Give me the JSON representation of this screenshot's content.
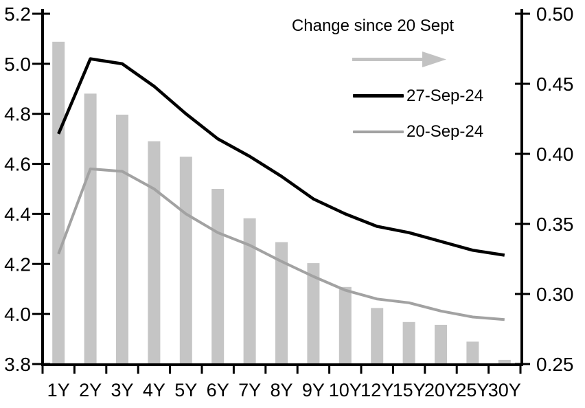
{
  "chart_data": {
    "type": "bar",
    "subtype": "combo-bar-line-dual-axis",
    "categories": [
      "1Y",
      "2Y",
      "3Y",
      "4Y",
      "5Y",
      "6Y",
      "7Y",
      "8Y",
      "9Y",
      "10Y",
      "12Y",
      "15Y",
      "20Y",
      "25Y",
      "30Y"
    ],
    "series": [
      {
        "name": "27-Sep-24",
        "type": "line",
        "axis": "left",
        "color": "#000000",
        "values": [
          4.72,
          5.02,
          5.0,
          4.91,
          4.8,
          4.7,
          4.63,
          4.55,
          4.46,
          4.4,
          4.35,
          4.325,
          4.29,
          4.255,
          4.235
        ]
      },
      {
        "name": "20-Sep-24",
        "type": "line",
        "axis": "left",
        "color": "#a2a2a2",
        "values": [
          4.24,
          4.58,
          4.57,
          4.5,
          4.4,
          4.325,
          4.275,
          4.21,
          4.15,
          4.095,
          4.06,
          4.045,
          4.012,
          3.988,
          3.978
        ]
      },
      {
        "name": "Change since 20 Sept",
        "type": "bar",
        "axis": "right",
        "color": "#c5c5c5",
        "values": [
          0.48,
          0.443,
          0.428,
          0.409,
          0.398,
          0.375,
          0.354,
          0.337,
          0.322,
          0.305,
          0.29,
          0.28,
          0.278,
          0.266,
          0.253
        ]
      }
    ],
    "left_axis": {
      "min": 3.8,
      "max": 5.2,
      "tick_labels": [
        "5.2",
        "5.0",
        "4.8",
        "4.6",
        "4.4",
        "4.2",
        "4.0",
        "3.8"
      ]
    },
    "right_axis": {
      "min": 0.25,
      "max": 0.5,
      "tick_labels": [
        "0.50",
        "0.45",
        "0.40",
        "0.35",
        "0.30",
        "0.25"
      ]
    },
    "grid": false,
    "background": "#ffffff",
    "legend": {
      "position": "top-right-inside",
      "title": "Change since 20 Sept",
      "arrow_color": "#c2c2c2",
      "items": [
        {
          "label": "27-Sep-24",
          "color": "#000000"
        },
        {
          "label": "20-Sep-24",
          "color": "#a2a2a2"
        }
      ]
    }
  }
}
